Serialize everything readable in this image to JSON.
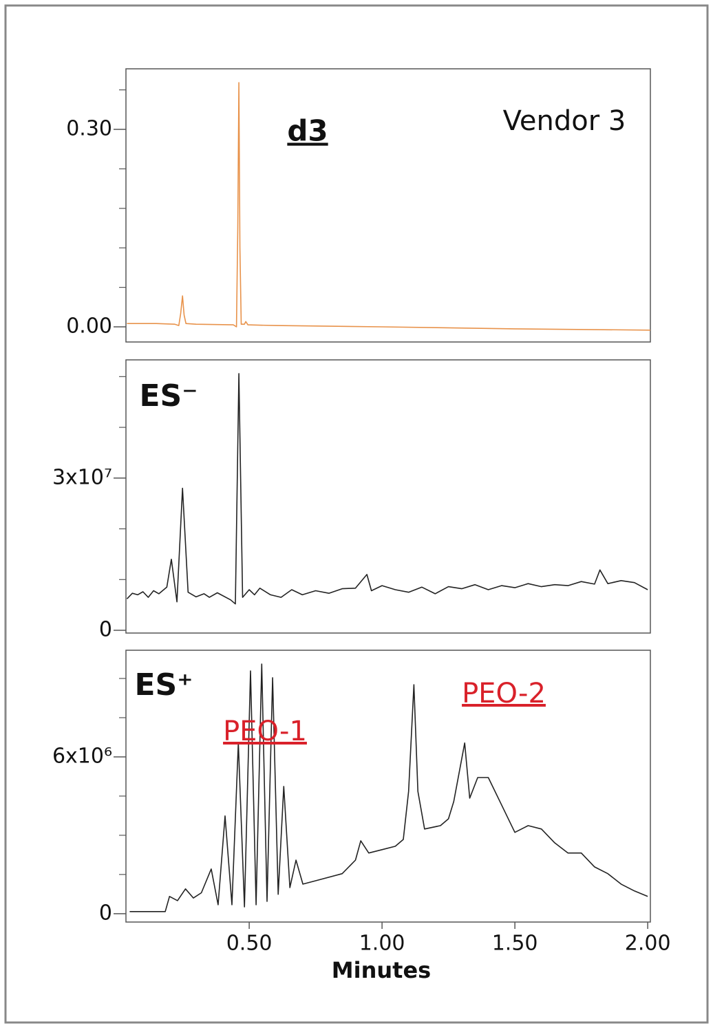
{
  "chart_data": [
    {
      "type": "line",
      "color": "#e8924a",
      "xlim": [
        0.036,
        2.01
      ],
      "ylim": [
        -0.023,
        0.392
      ],
      "yticks": [
        {
          "value": 0,
          "label": "0.00"
        },
        {
          "value": 0.3,
          "label": "0.30"
        }
      ],
      "yminorticks": [
        0.06,
        0.12,
        0.18,
        0.24,
        0.36
      ],
      "annotations": [
        {
          "text": "d3"
        },
        {
          "text": "Vendor 3"
        }
      ],
      "x": [
        0.04,
        0.15,
        0.22,
        0.235,
        0.242,
        0.249,
        0.255,
        0.262,
        0.3,
        0.44,
        0.452,
        0.457,
        0.461,
        0.465,
        0.47,
        0.482,
        0.487,
        0.495,
        0.6,
        1.0,
        1.5,
        2.01
      ],
      "values": [
        0.005,
        0.005,
        0.004,
        0.002,
        0.02,
        0.047,
        0.018,
        0.005,
        0.004,
        0.003,
        0.0,
        0.15,
        0.371,
        0.12,
        0.004,
        0.004,
        0.008,
        0.003,
        0.002,
        0.0,
        -0.003,
        -0.005
      ]
    },
    {
      "type": "line",
      "color": "#222222",
      "xlim": [
        0.036,
        2.01
      ],
      "ylim": [
        -540000,
        53300000
      ],
      "yticks": [
        0,
        {
          "value": 30000000,
          "label": "3x10⁷"
        }
      ],
      "yminorticks": [
        10000000,
        20000000,
        40000000,
        50000000
      ],
      "annotations": [
        {
          "text": "ES⁻"
        }
      ],
      "x": [
        0.04,
        0.06,
        0.08,
        0.1,
        0.12,
        0.14,
        0.16,
        0.19,
        0.207,
        0.228,
        0.249,
        0.27,
        0.3,
        0.33,
        0.35,
        0.38,
        0.43,
        0.448,
        0.461,
        0.475,
        0.5,
        0.52,
        0.54,
        0.58,
        0.62,
        0.66,
        0.7,
        0.75,
        0.8,
        0.85,
        0.9,
        0.943,
        0.96,
        1.0,
        1.05,
        1.1,
        1.15,
        1.2,
        1.25,
        1.3,
        1.35,
        1.4,
        1.45,
        1.5,
        1.55,
        1.6,
        1.65,
        1.7,
        1.75,
        1.8,
        1.82,
        1.85,
        1.9,
        1.95,
        2.0
      ],
      "values": [
        6200000,
        7300000,
        7000000,
        7600000,
        6500000,
        7800000,
        7200000,
        8500000,
        14000000,
        5600000,
        28000000,
        7500000,
        6600000,
        7200000,
        6500000,
        7400000,
        6000000,
        5200000,
        50600000,
        6500000,
        8000000,
        7000000,
        8300000,
        7000000,
        6500000,
        8000000,
        7000000,
        7800000,
        7300000,
        8200000,
        8300000,
        11000000,
        7800000,
        8800000,
        8000000,
        7500000,
        8500000,
        7200000,
        8600000,
        8200000,
        9000000,
        8000000,
        8800000,
        8400000,
        9200000,
        8600000,
        9000000,
        8800000,
        9600000,
        9100000,
        11900000,
        9200000,
        9800000,
        9400000,
        8000000
      ]
    },
    {
      "type": "line",
      "color": "#222222",
      "xlim": [
        0.036,
        2.01
      ],
      "ylim": [
        -320000,
        10080000
      ],
      "yticks": [
        0,
        {
          "value": 6000000,
          "label": "6x10⁶"
        }
      ],
      "yminorticks": [
        1500000,
        3000000,
        4500000,
        7500000,
        9000000
      ],
      "xticks": [
        {
          "value": 0.5,
          "label": "0.50"
        },
        {
          "value": 1,
          "label": "1.00"
        },
        {
          "value": 1.5,
          "label": "1.50"
        },
        {
          "value": 2,
          "label": "2.00"
        }
      ],
      "xlabel": "Minutes",
      "annotations": [
        {
          "text": "ES⁺"
        },
        {
          "text": "PEO-1",
          "color": "#d9212a"
        },
        {
          "text": "PEO-2",
          "color": "#d9212a"
        }
      ],
      "x": [
        0.05,
        0.184,
        0.2,
        0.23,
        0.26,
        0.29,
        0.32,
        0.357,
        0.383,
        0.409,
        0.435,
        0.459,
        0.482,
        0.505,
        0.526,
        0.547,
        0.567,
        0.588,
        0.609,
        0.63,
        0.653,
        0.676,
        0.702,
        0.75,
        0.85,
        0.9,
        0.92,
        0.95,
        1.0,
        1.05,
        1.08,
        1.1,
        1.12,
        1.135,
        1.16,
        1.22,
        1.25,
        1.27,
        1.311,
        1.33,
        1.36,
        1.4,
        1.45,
        1.5,
        1.55,
        1.6,
        1.65,
        1.7,
        1.75,
        1.8,
        1.85,
        1.9,
        1.95,
        2.0
      ],
      "values": [
        80000,
        80000,
        660000,
        500000,
        950000,
        600000,
        800000,
        1710000,
        340000,
        3740000,
        340000,
        6530000,
        260000,
        9290000,
        340000,
        9550000,
        470000,
        9030000,
        740000,
        4870000,
        1000000,
        2050000,
        1130000,
        1260000,
        1530000,
        2050000,
        2790000,
        2320000,
        2450000,
        2580000,
        2840000,
        4680000,
        8760000,
        4680000,
        3240000,
        3370000,
        3630000,
        4290000,
        6530000,
        4420000,
        5210000,
        5210000,
        4160000,
        3110000,
        3370000,
        3240000,
        2710000,
        2320000,
        2320000,
        1790000,
        1530000,
        1130000,
        870000,
        660000
      ]
    }
  ]
}
